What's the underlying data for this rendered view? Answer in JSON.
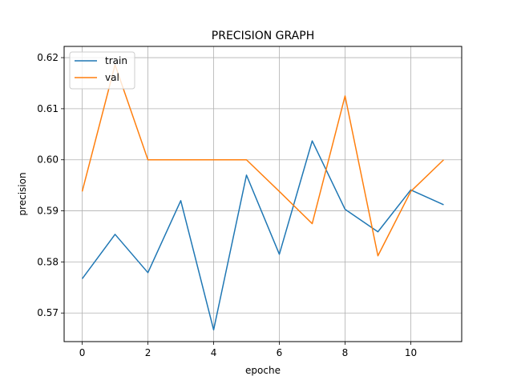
{
  "chart_data": {
    "type": "line",
    "title": "PRECISION GRAPH",
    "xlabel": "epoche",
    "ylabel": "precision",
    "xlim": [
      -0.55,
      11.55
    ],
    "ylim": [
      0.5644,
      0.6222
    ],
    "xticks": [
      0,
      2,
      4,
      6,
      8,
      10
    ],
    "xtick_labels": [
      "0",
      "2",
      "4",
      "6",
      "8",
      "10"
    ],
    "yticks": [
      0.57,
      0.58,
      0.59,
      0.6,
      0.61,
      0.62
    ],
    "ytick_labels": [
      "0.57",
      "0.58",
      "0.59",
      "0.60",
      "0.61",
      "0.62"
    ],
    "grid": true,
    "legend_position": "top-left",
    "x": [
      0,
      1,
      2,
      3,
      4,
      5,
      6,
      7,
      8,
      9,
      10,
      11
    ],
    "series": [
      {
        "name": "train",
        "color": "#1f77b4",
        "values": [
          0.5767,
          0.5854,
          0.5779,
          0.592,
          0.5667,
          0.597,
          0.5815,
          0.6037,
          0.5903,
          0.5859,
          0.5941,
          0.5912
        ]
      },
      {
        "name": "val",
        "color": "#ff7f0e",
        "values": [
          0.5938,
          0.6186,
          0.6,
          0.6,
          0.6,
          0.6,
          0.5938,
          0.5875,
          0.6125,
          0.5812,
          0.5938,
          0.6
        ]
      }
    ]
  }
}
